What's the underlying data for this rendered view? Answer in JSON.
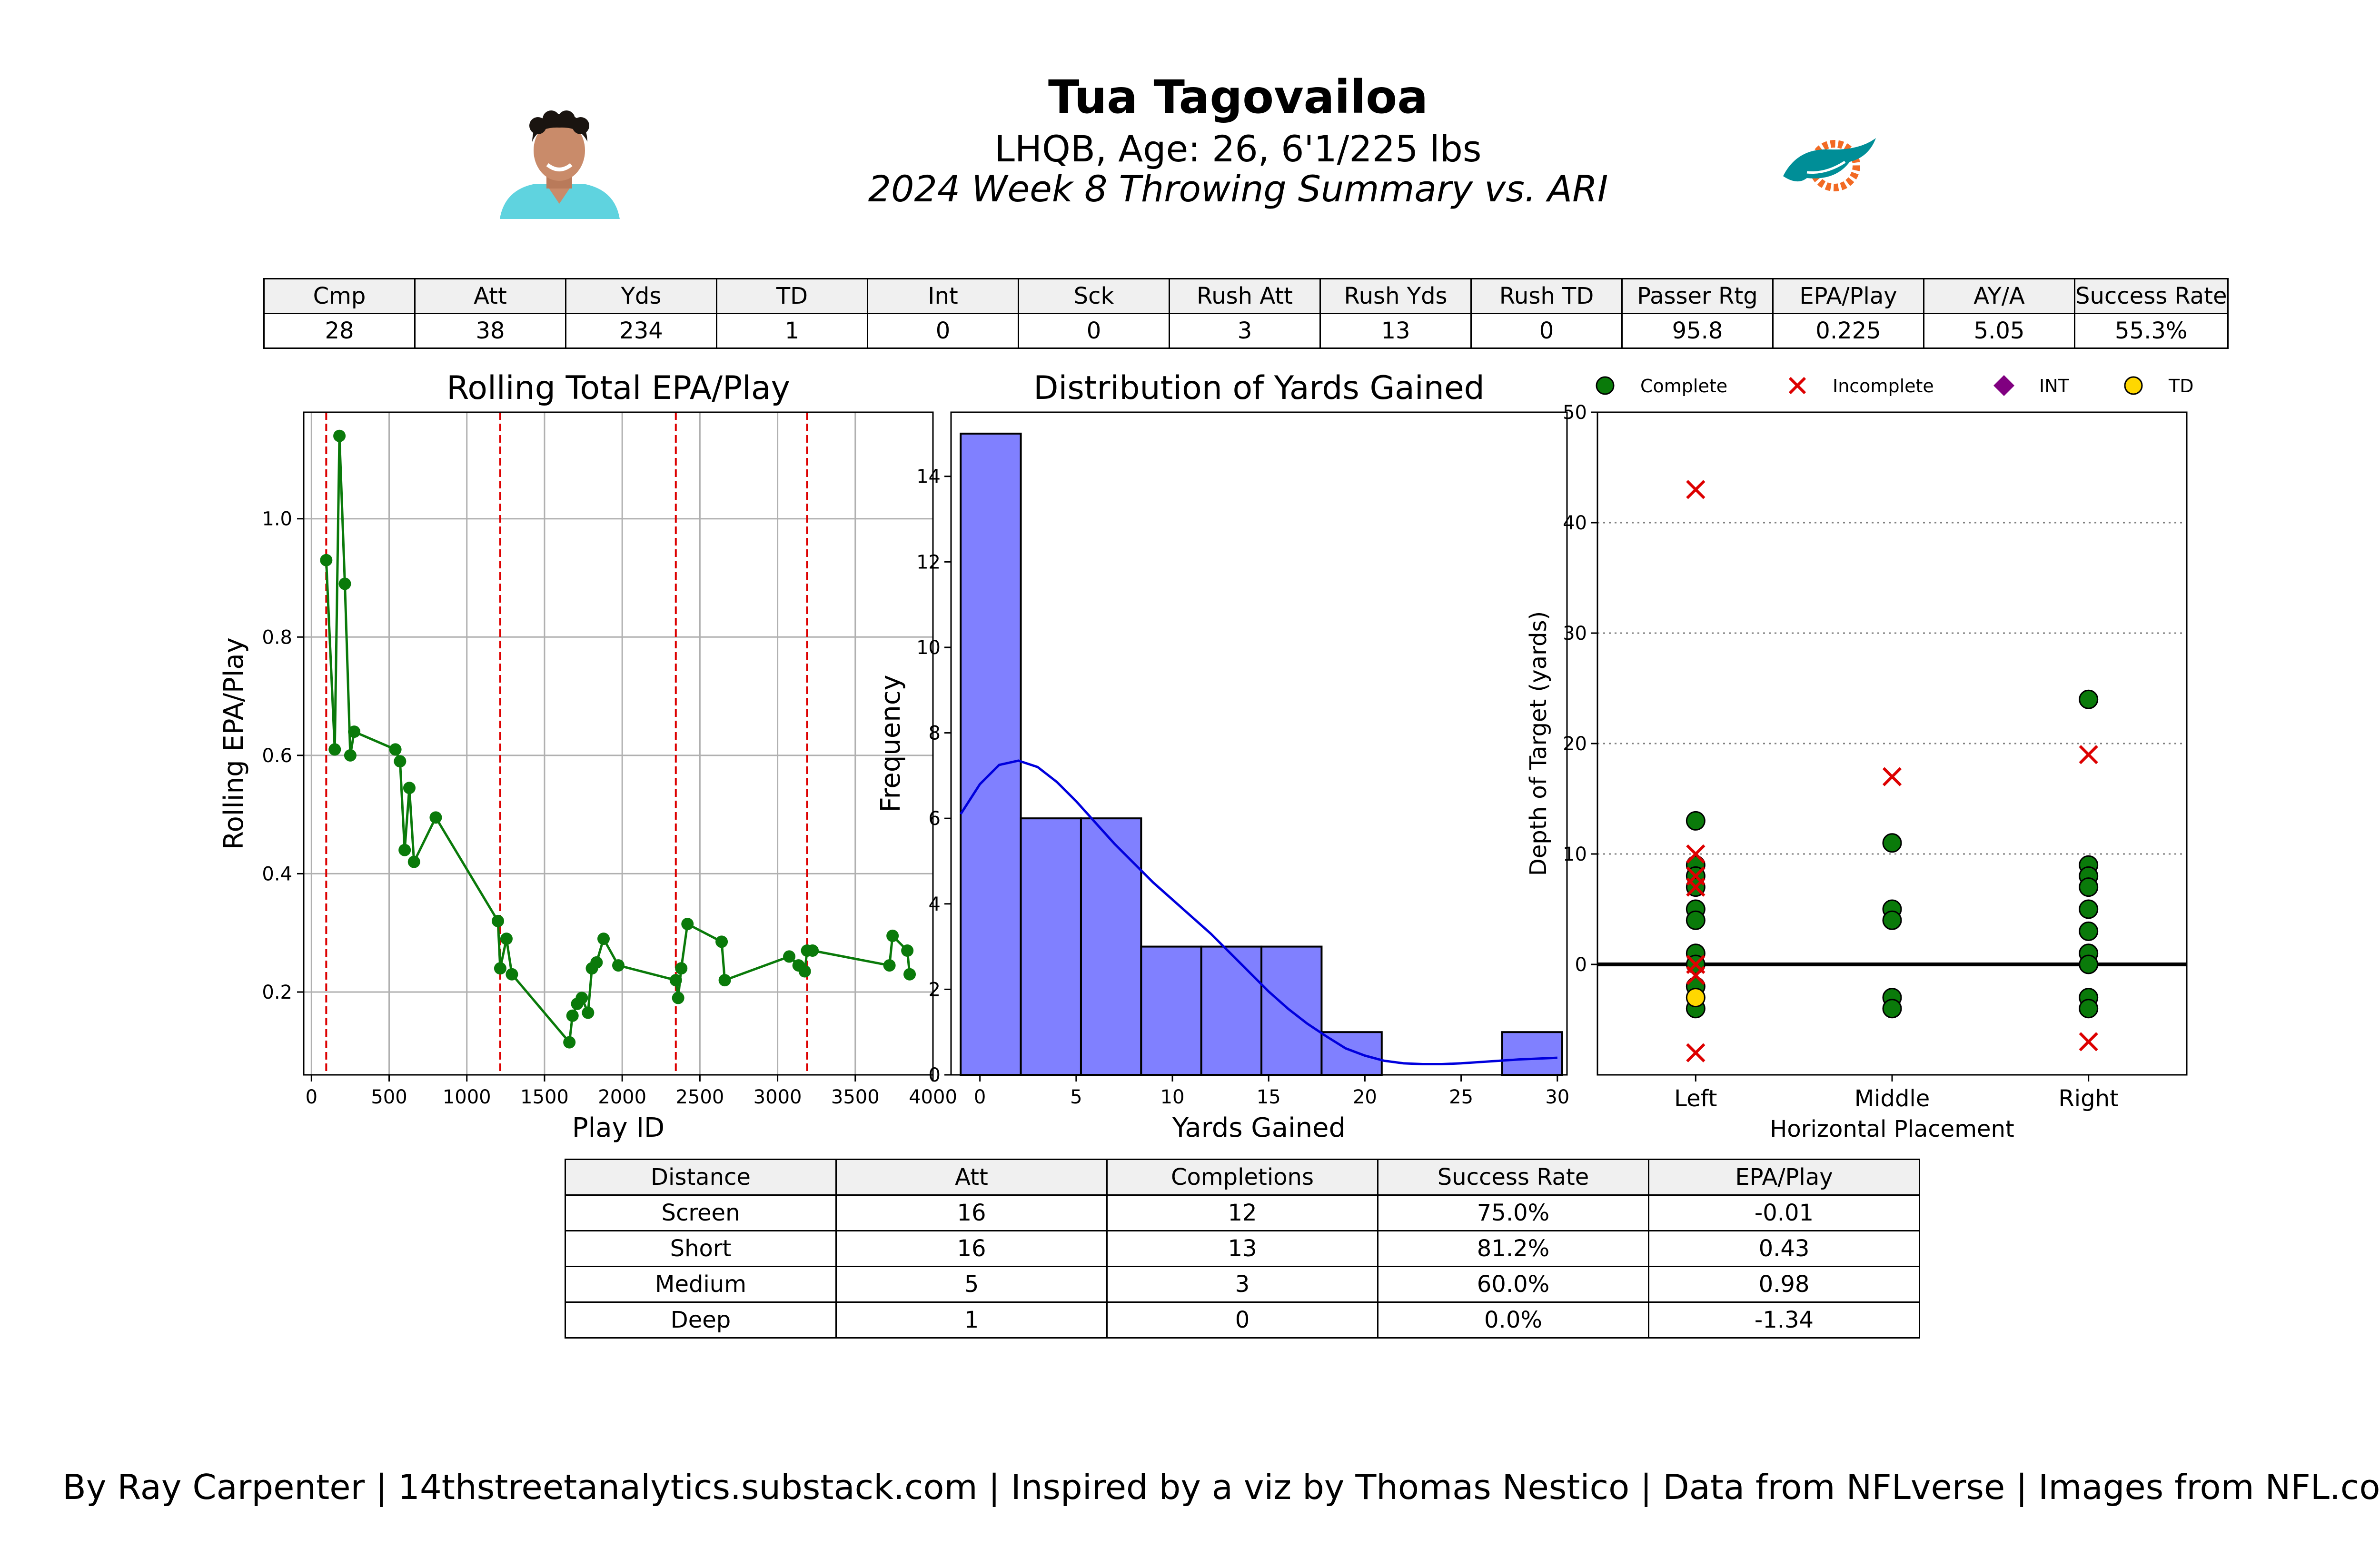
{
  "header": {
    "player_name": "Tua Tagovailoa",
    "player_info": "LHQB, Age: 26, 6'1/225 lbs",
    "game_info": "2024 Week 8 Throwing Summary vs. ARI"
  },
  "summary_table": {
    "headers": [
      "Cmp",
      "Att",
      "Yds",
      "TD",
      "Int",
      "Sck",
      "Rush Att",
      "Rush Yds",
      "Rush TD",
      "Passer Rtg",
      "EPA/Play",
      "AY/A",
      "Success Rate"
    ],
    "values": [
      "28",
      "38",
      "234",
      "1",
      "0",
      "0",
      "3",
      "13",
      "0",
      "95.8",
      "0.225",
      "5.05",
      "55.3%"
    ]
  },
  "distance_table": {
    "headers": [
      "Distance",
      "Att",
      "Completions",
      "Success Rate",
      "EPA/Play"
    ],
    "rows": [
      [
        "Screen",
        "16",
        "12",
        "75.0%",
        "-0.01"
      ],
      [
        "Short",
        "16",
        "13",
        "81.2%",
        "0.43"
      ],
      [
        "Medium",
        "5",
        "3",
        "60.0%",
        "0.98"
      ],
      [
        "Deep",
        "1",
        "0",
        "0.0%",
        "-1.34"
      ]
    ]
  },
  "footer": "By Ray Carpenter | 14thstreetanalytics.substack.com | Inspired by a viz by Thomas Nestico | Data from NFLverse | Images from NFL.com",
  "colors": {
    "line": "#0a7a0a",
    "quarter_line": "#dd0000",
    "hist_fill": "#8080ff",
    "kde": "#0000dd",
    "complete": "#0a7a0a",
    "incomplete": "#dd0000",
    "int": "#800080",
    "td": "#ffd700",
    "header_bg": "#f0f0f0"
  },
  "chart_data": [
    {
      "type": "line",
      "title": "Rolling Total EPA/Play",
      "xlabel": "Play ID",
      "ylabel": "Rolling EPA/Play",
      "xlim": [
        -50,
        4000
      ],
      "ylim": [
        0.06,
        1.18
      ],
      "xticks": [
        0,
        500,
        1000,
        1500,
        2000,
        2500,
        3000,
        3500,
        4000
      ],
      "yticks": [
        0.2,
        0.4,
        0.6,
        0.8,
        1.0
      ],
      "ytick_labels": [
        "0.2",
        "0.4",
        "0.6",
        "0.8",
        "1.0"
      ],
      "grid": true,
      "quarter_lines": [
        95,
        1215,
        2345,
        3190
      ],
      "x": [
        95,
        150,
        180,
        215,
        250,
        275,
        540,
        570,
        600,
        630,
        660,
        800,
        1200,
        1215,
        1255,
        1290,
        1660,
        1680,
        1710,
        1740,
        1780,
        1805,
        1835,
        1880,
        1975,
        2345,
        2360,
        2380,
        2420,
        2640,
        2660,
        3075,
        3135,
        3175,
        3190,
        3225,
        3720,
        3740,
        3835,
        3850
      ],
      "y": [
        0.93,
        0.61,
        1.14,
        0.89,
        0.6,
        0.64,
        0.61,
        0.59,
        0.44,
        0.545,
        0.42,
        0.495,
        0.32,
        0.24,
        0.29,
        0.23,
        0.115,
        0.16,
        0.18,
        0.19,
        0.165,
        0.24,
        0.25,
        0.29,
        0.245,
        0.22,
        0.19,
        0.24,
        0.315,
        0.285,
        0.22,
        0.26,
        0.245,
        0.235,
        0.27,
        0.27,
        0.245,
        0.295,
        0.27,
        0.23
      ]
    },
    {
      "type": "bar",
      "title": "Distribution of Yards Gained",
      "xlabel": "Yards Gained",
      "ylabel": "Frequency",
      "xlim": [
        -1.5,
        30.5
      ],
      "ylim": [
        0,
        15.5
      ],
      "xticks": [
        0,
        5,
        10,
        15,
        20,
        25,
        30
      ],
      "yticks": [
        0,
        2,
        4,
        6,
        8,
        10,
        12,
        14
      ],
      "bin_edges": [
        -1,
        2.125,
        5.25,
        8.375,
        11.5,
        14.625,
        17.75,
        20.875,
        24,
        27.125,
        30.25
      ],
      "counts": [
        15,
        6,
        6,
        3,
        3,
        3,
        1,
        0,
        0,
        1
      ],
      "kde_x": [
        -1,
        0,
        1,
        2,
        3,
        4,
        5,
        6,
        7,
        8,
        9,
        10,
        11,
        12,
        13,
        14,
        15,
        16,
        17,
        18,
        19,
        20,
        21,
        22,
        23,
        24,
        25,
        26,
        27,
        28,
        29,
        30
      ],
      "kde_y": [
        6.1,
        6.8,
        7.25,
        7.35,
        7.2,
        6.85,
        6.4,
        5.9,
        5.4,
        4.95,
        4.5,
        4.1,
        3.7,
        3.3,
        2.85,
        2.4,
        1.95,
        1.55,
        1.2,
        0.9,
        0.62,
        0.45,
        0.33,
        0.27,
        0.25,
        0.25,
        0.27,
        0.3,
        0.33,
        0.36,
        0.38,
        0.4
      ]
    },
    {
      "type": "scatter",
      "xlabel": "Horizontal Placement",
      "ylabel": "Depth of Target (yards)",
      "categories": [
        "Left",
        "Middle",
        "Right"
      ],
      "ylim": [
        -10,
        50
      ],
      "yticks": [
        0,
        10,
        20,
        30,
        40,
        50
      ],
      "legend": [
        "Complete",
        "Incomplete",
        "INT",
        "TD"
      ],
      "legend_position": "top",
      "points": [
        {
          "x": "Left",
          "y": 13,
          "result": "Complete"
        },
        {
          "x": "Left",
          "y": 9,
          "result": "Complete"
        },
        {
          "x": "Left",
          "y": 8,
          "result": "Complete"
        },
        {
          "x": "Left",
          "y": 7,
          "result": "Complete"
        },
        {
          "x": "Left",
          "y": 5,
          "result": "Complete"
        },
        {
          "x": "Left",
          "y": 4,
          "result": "Complete"
        },
        {
          "x": "Left",
          "y": 1,
          "result": "Complete"
        },
        {
          "x": "Left",
          "y": 0,
          "result": "Complete"
        },
        {
          "x": "Left",
          "y": -2,
          "result": "Complete"
        },
        {
          "x": "Left",
          "y": -4,
          "result": "Complete"
        },
        {
          "x": "Left",
          "y": -3,
          "result": "TD"
        },
        {
          "x": "Left",
          "y": 43,
          "result": "Incomplete"
        },
        {
          "x": "Left",
          "y": 10,
          "result": "Incomplete"
        },
        {
          "x": "Left",
          "y": 8,
          "result": "Incomplete"
        },
        {
          "x": "Left",
          "y": 7,
          "result": "Incomplete"
        },
        {
          "x": "Left",
          "y": 0,
          "result": "Incomplete"
        },
        {
          "x": "Left",
          "y": -1,
          "result": "Incomplete"
        },
        {
          "x": "Left",
          "y": -8,
          "result": "Incomplete"
        },
        {
          "x": "Middle",
          "y": 11,
          "result": "Complete"
        },
        {
          "x": "Middle",
          "y": 5,
          "result": "Complete"
        },
        {
          "x": "Middle",
          "y": 4,
          "result": "Complete"
        },
        {
          "x": "Middle",
          "y": -3,
          "result": "Complete"
        },
        {
          "x": "Middle",
          "y": -4,
          "result": "Complete"
        },
        {
          "x": "Middle",
          "y": 17,
          "result": "Incomplete"
        },
        {
          "x": "Right",
          "y": 24,
          "result": "Complete"
        },
        {
          "x": "Right",
          "y": 9,
          "result": "Complete"
        },
        {
          "x": "Right",
          "y": 8,
          "result": "Complete"
        },
        {
          "x": "Right",
          "y": 7,
          "result": "Complete"
        },
        {
          "x": "Right",
          "y": 5,
          "result": "Complete"
        },
        {
          "x": "Right",
          "y": 3,
          "result": "Complete"
        },
        {
          "x": "Right",
          "y": 1,
          "result": "Complete"
        },
        {
          "x": "Right",
          "y": 0,
          "result": "Complete"
        },
        {
          "x": "Right",
          "y": -3,
          "result": "Complete"
        },
        {
          "x": "Right",
          "y": -4,
          "result": "Complete"
        },
        {
          "x": "Right",
          "y": 19,
          "result": "Incomplete"
        },
        {
          "x": "Right",
          "y": -7,
          "result": "Incomplete"
        }
      ]
    }
  ]
}
